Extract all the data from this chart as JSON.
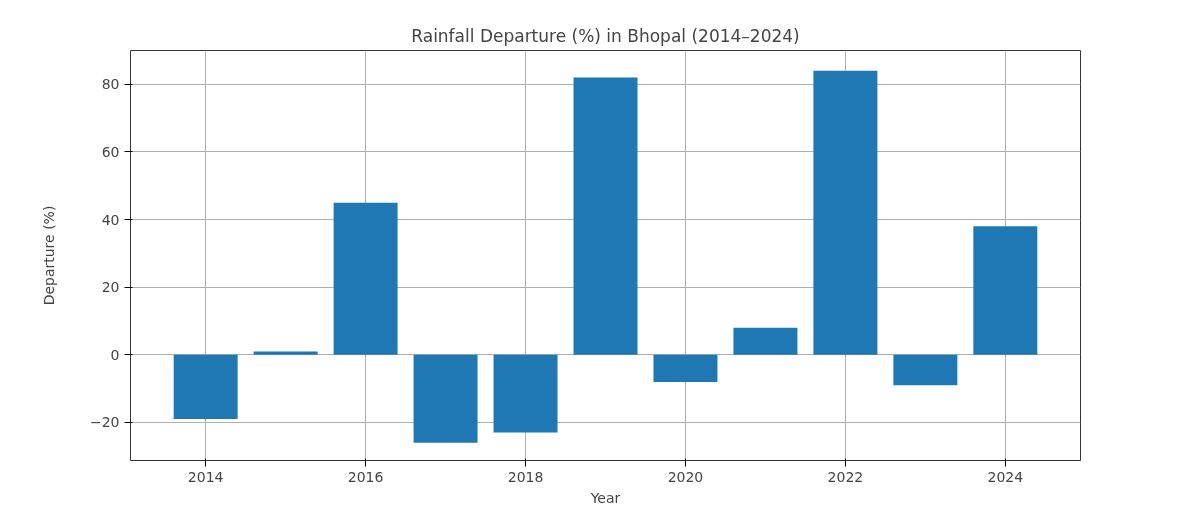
{
  "chart_data": {
    "type": "bar",
    "title": "Rainfall Departure (%) in Bhopal (2014–2024)",
    "xlabel": "Year",
    "ylabel": "Departure (%)",
    "x": [
      2014,
      2015,
      2016,
      2017,
      2018,
      2019,
      2020,
      2021,
      2022,
      2023,
      2024
    ],
    "values": [
      -19,
      1,
      45,
      -26,
      -23,
      82,
      -8,
      8,
      84,
      -9,
      38
    ],
    "color": "#1f77b4",
    "xlim": [
      2013.06,
      2024.94
    ],
    "xticks": [
      2014,
      2016,
      2018,
      2020,
      2022,
      2024
    ],
    "ylim": [
      -31.25,
      90
    ],
    "yticks": [
      {
        "value": -20,
        "label": "−20"
      },
      0,
      20,
      40,
      60,
      80
    ],
    "grid": true
  }
}
